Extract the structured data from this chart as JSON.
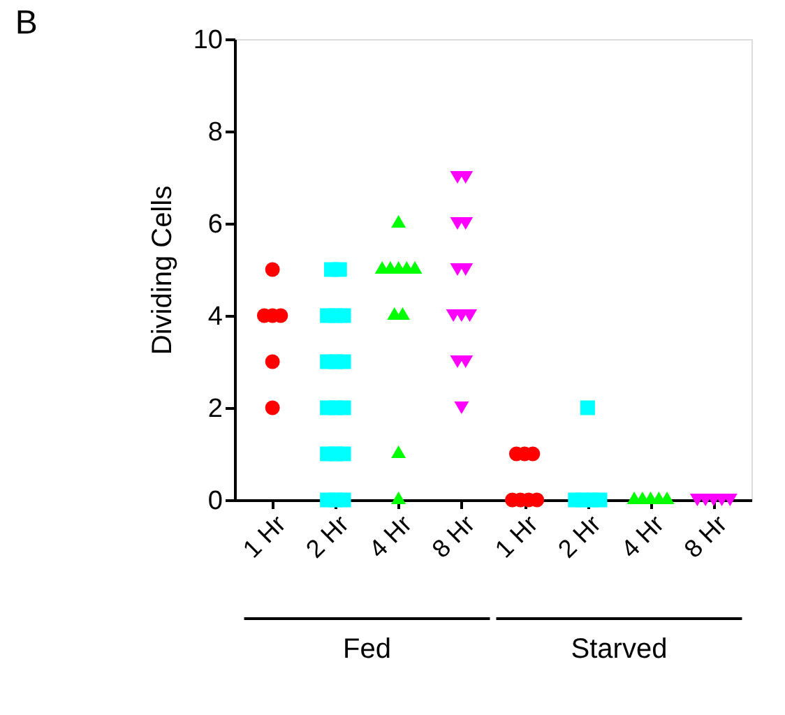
{
  "chart_data": {
    "type": "scatter",
    "title": "B",
    "ylabel": "Dividing Cells",
    "categories": [
      "1 Hr",
      "2 Hr",
      "4 Hr",
      "8 Hr",
      "1 Hr",
      "2 Hr",
      "4 Hr",
      "8 Hr"
    ],
    "series": [
      {
        "color": "#ff0000",
        "marker": "circle",
        "values": [
          5,
          null,
          null,
          null,
          1,
          null,
          null,
          null
        ]
      },
      {
        "color": "#ff0000",
        "marker": "circle",
        "values": [
          4,
          null,
          null,
          null,
          1,
          null,
          null,
          null
        ]
      },
      {
        "color": "#ff0000",
        "marker": "circle",
        "values": [
          4,
          null,
          null,
          null,
          1,
          null,
          null,
          null
        ]
      },
      {
        "color": "#ff0000",
        "marker": "circle",
        "values": [
          4,
          null,
          null,
          null,
          0,
          null,
          null,
          null
        ]
      },
      {
        "color": "#ff0000",
        "marker": "circle",
        "values": [
          3,
          null,
          null,
          null,
          0,
          null,
          null,
          null
        ]
      },
      {
        "color": "#ff0000",
        "marker": "circle",
        "values": [
          2,
          null,
          null,
          null,
          0,
          null,
          null,
          null
        ]
      },
      {
        "color": "#ff0000",
        "marker": "circle",
        "values": [
          null,
          null,
          null,
          null,
          0,
          null,
          null,
          null
        ]
      },
      {
        "color": "#00ffff",
        "marker": "square",
        "values": [
          null,
          5,
          null,
          null,
          null,
          2,
          null,
          null
        ]
      },
      {
        "color": "#00ffff",
        "marker": "square",
        "values": [
          null,
          5,
          null,
          null,
          null,
          0,
          null,
          null
        ]
      },
      {
        "color": "#00ffff",
        "marker": "square",
        "values": [
          null,
          4,
          null,
          null,
          null,
          0,
          null,
          null
        ]
      },
      {
        "color": "#00ffff",
        "marker": "square",
        "values": [
          null,
          4,
          null,
          null,
          null,
          0,
          null,
          null
        ]
      },
      {
        "color": "#00ffff",
        "marker": "square",
        "values": [
          null,
          4,
          null,
          null,
          null,
          0,
          null,
          null
        ]
      },
      {
        "color": "#00ffff",
        "marker": "square",
        "values": [
          null,
          3,
          null,
          null,
          null,
          null,
          null,
          null
        ]
      },
      {
        "color": "#00ffff",
        "marker": "square",
        "values": [
          null,
          3,
          null,
          null,
          null,
          null,
          null,
          null
        ]
      },
      {
        "color": "#00ffff",
        "marker": "square",
        "values": [
          null,
          3,
          null,
          null,
          null,
          null,
          null,
          null
        ]
      },
      {
        "color": "#00ffff",
        "marker": "square",
        "values": [
          null,
          2,
          null,
          null,
          null,
          null,
          null,
          null
        ]
      },
      {
        "color": "#00ffff",
        "marker": "square",
        "values": [
          null,
          2,
          null,
          null,
          null,
          null,
          null,
          null
        ]
      },
      {
        "color": "#00ffff",
        "marker": "square",
        "values": [
          null,
          2,
          null,
          null,
          null,
          null,
          null,
          null
        ]
      },
      {
        "color": "#00ffff",
        "marker": "square",
        "values": [
          null,
          1,
          null,
          null,
          null,
          null,
          null,
          null
        ]
      },
      {
        "color": "#00ffff",
        "marker": "square",
        "values": [
          null,
          1,
          null,
          null,
          null,
          null,
          null,
          null
        ]
      },
      {
        "color": "#00ffff",
        "marker": "square",
        "values": [
          null,
          1,
          null,
          null,
          null,
          null,
          null,
          null
        ]
      },
      {
        "color": "#00ffff",
        "marker": "square",
        "values": [
          null,
          0,
          null,
          null,
          null,
          null,
          null,
          null
        ]
      },
      {
        "color": "#00ffff",
        "marker": "square",
        "values": [
          null,
          0,
          null,
          null,
          null,
          null,
          null,
          null
        ]
      },
      {
        "color": "#00ffff",
        "marker": "square",
        "values": [
          null,
          0,
          null,
          null,
          null,
          null,
          null,
          null
        ]
      },
      {
        "color": "#00ff00",
        "marker": "triangle",
        "values": [
          null,
          null,
          6,
          null,
          null,
          null,
          0,
          null
        ]
      },
      {
        "color": "#00ff00",
        "marker": "triangle",
        "values": [
          null,
          null,
          5,
          null,
          null,
          null,
          0,
          null
        ]
      },
      {
        "color": "#00ff00",
        "marker": "triangle",
        "values": [
          null,
          null,
          5,
          null,
          null,
          null,
          0,
          null
        ]
      },
      {
        "color": "#00ff00",
        "marker": "triangle",
        "values": [
          null,
          null,
          5,
          null,
          null,
          null,
          0,
          null
        ]
      },
      {
        "color": "#00ff00",
        "marker": "triangle",
        "values": [
          null,
          null,
          5,
          null,
          null,
          null,
          0,
          null
        ]
      },
      {
        "color": "#00ff00",
        "marker": "triangle",
        "values": [
          null,
          null,
          5,
          null,
          null,
          null,
          null,
          null
        ]
      },
      {
        "color": "#00ff00",
        "marker": "triangle",
        "values": [
          null,
          null,
          4,
          null,
          null,
          null,
          null,
          null
        ]
      },
      {
        "color": "#00ff00",
        "marker": "triangle",
        "values": [
          null,
          null,
          4,
          null,
          null,
          null,
          null,
          null
        ]
      },
      {
        "color": "#00ff00",
        "marker": "triangle",
        "values": [
          null,
          null,
          1,
          null,
          null,
          null,
          null,
          null
        ]
      },
      {
        "color": "#00ff00",
        "marker": "triangle",
        "values": [
          null,
          null,
          0,
          null,
          null,
          null,
          null,
          null
        ]
      },
      {
        "color": "#ff00ff",
        "marker": "triangle-down",
        "values": [
          null,
          null,
          null,
          7,
          null,
          null,
          null,
          0
        ]
      },
      {
        "color": "#ff00ff",
        "marker": "triangle-down",
        "values": [
          null,
          null,
          null,
          7,
          null,
          null,
          null,
          0
        ]
      },
      {
        "color": "#ff00ff",
        "marker": "triangle-down",
        "values": [
          null,
          null,
          null,
          6,
          null,
          null,
          null,
          0
        ]
      },
      {
        "color": "#ff00ff",
        "marker": "triangle-down",
        "values": [
          null,
          null,
          null,
          6,
          null,
          null,
          null,
          0
        ]
      },
      {
        "color": "#ff00ff",
        "marker": "triangle-down",
        "values": [
          null,
          null,
          null,
          5,
          null,
          null,
          null,
          0
        ]
      },
      {
        "color": "#ff00ff",
        "marker": "triangle-down",
        "values": [
          null,
          null,
          null,
          5,
          null,
          null,
          null,
          null
        ]
      },
      {
        "color": "#ff00ff",
        "marker": "triangle-down",
        "values": [
          null,
          null,
          null,
          4,
          null,
          null,
          null,
          null
        ]
      },
      {
        "color": "#ff00ff",
        "marker": "triangle-down",
        "values": [
          null,
          null,
          null,
          4,
          null,
          null,
          null,
          null
        ]
      },
      {
        "color": "#ff00ff",
        "marker": "triangle-down",
        "values": [
          null,
          null,
          null,
          4,
          null,
          null,
          null,
          null
        ]
      },
      {
        "color": "#ff00ff",
        "marker": "triangle-down",
        "values": [
          null,
          null,
          null,
          3,
          null,
          null,
          null,
          null
        ]
      },
      {
        "color": "#ff00ff",
        "marker": "triangle-down",
        "values": [
          null,
          null,
          null,
          3,
          null,
          null,
          null,
          null
        ]
      },
      {
        "color": "#ff00ff",
        "marker": "triangle-down",
        "values": [
          null,
          null,
          null,
          2,
          null,
          null,
          null,
          null
        ]
      }
    ],
    "ylim": [
      0,
      10
    ],
    "yticks": [
      0,
      2,
      4,
      6,
      8,
      10
    ],
    "grid": false,
    "legend": false,
    "annotations": [
      "Fed",
      "Starved"
    ]
  }
}
